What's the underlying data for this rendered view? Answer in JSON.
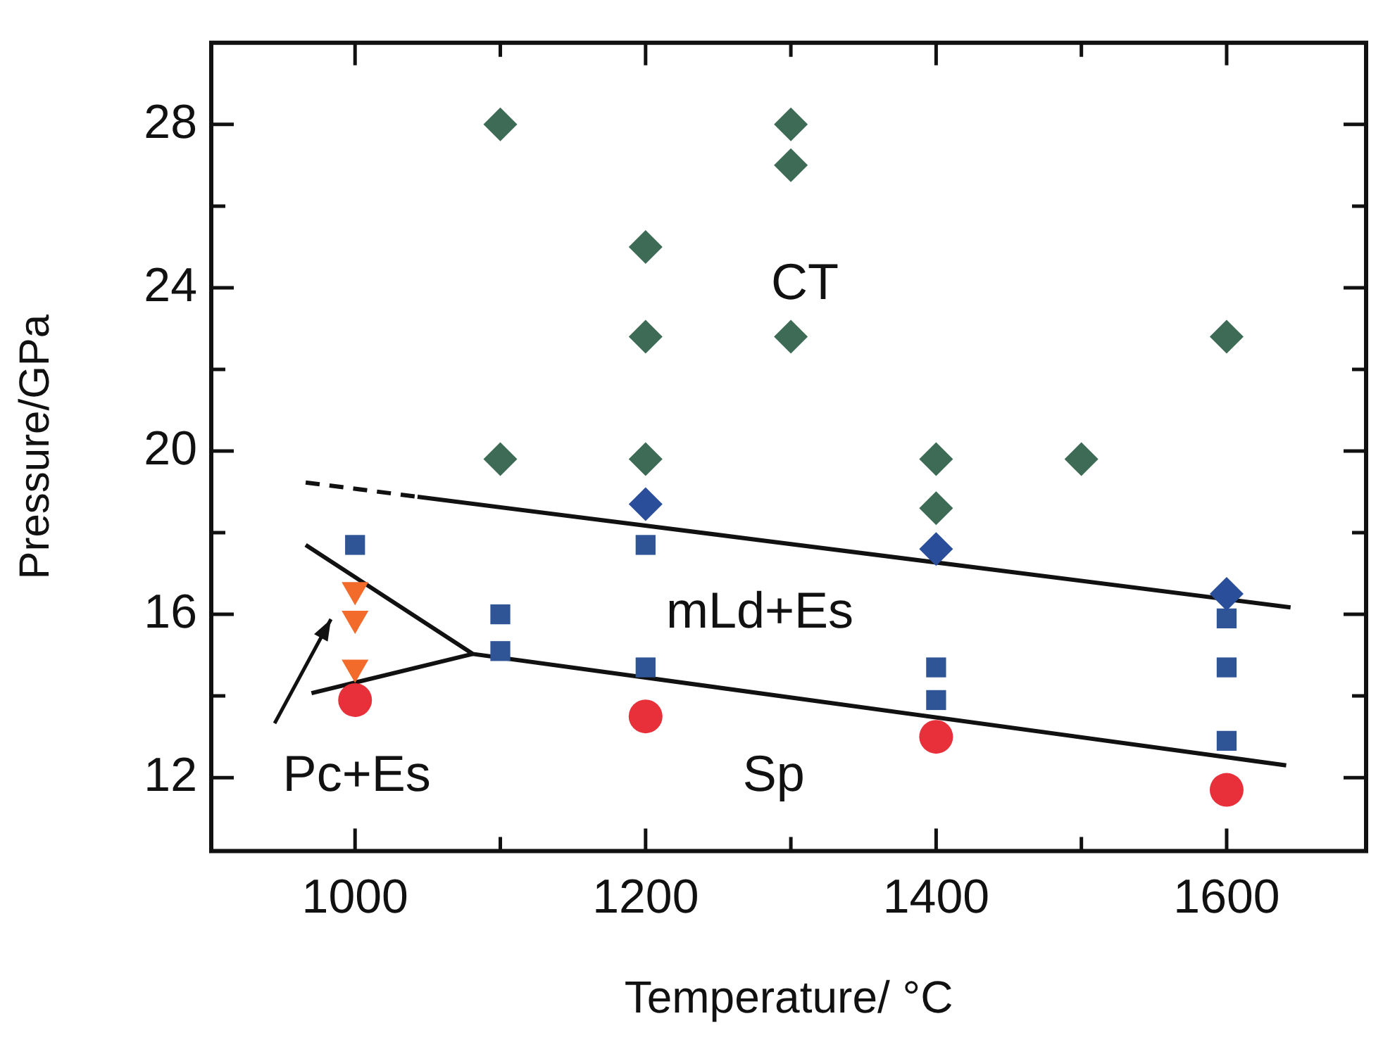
{
  "chart_data": {
    "type": "scatter",
    "xlabel": "Temperature/ °C",
    "ylabel": "Pressure/GPa",
    "xlim": [
      901,
      1696
    ],
    "ylim": [
      10.2,
      30
    ],
    "xticks": [
      1000,
      {
        "value": 1100,
        "label": null
      },
      1200,
      {
        "value": 1300,
        "label": null
      },
      1400,
      {
        "value": 1500,
        "label": null
      },
      1600
    ],
    "yticks": [
      12,
      {
        "value": 14,
        "label": null
      },
      16,
      {
        "value": 18,
        "label": null
      },
      20,
      {
        "value": 22,
        "label": null
      },
      24,
      {
        "value": 26,
        "label": null
      },
      28
    ],
    "grid": false,
    "legend": false,
    "series": [
      {
        "marker": "diamond",
        "color": "#3d6b55",
        "x": [
          1100,
          1300,
          1300,
          1200,
          1200,
          1300,
          1600,
          1100,
          1200,
          1400,
          1500,
          1400
        ],
        "values": [
          28,
          28,
          27,
          25,
          22.8,
          22.8,
          22.8,
          19.8,
          19.8,
          19.8,
          19.8,
          18.6
        ]
      },
      {
        "marker": "diamond",
        "color": "#2a4e9a",
        "x": [
          1200,
          1400,
          1600
        ],
        "values": [
          18.7,
          17.6,
          16.5
        ]
      },
      {
        "marker": "square",
        "color": "#2f5597",
        "x": [
          1000,
          1100,
          1100,
          1200,
          1200,
          1400,
          1400,
          1600,
          1600,
          1600
        ],
        "values": [
          17.7,
          16,
          15.1,
          17.7,
          14.7,
          14.7,
          13.9,
          15.9,
          14.7,
          12.9
        ]
      },
      {
        "marker": "triangle",
        "color": "#f26b2a",
        "x": [
          1000,
          1000,
          1000
        ],
        "values": [
          16.6,
          15.9,
          14.7
        ]
      },
      {
        "marker": "circle",
        "color": "#e8303a",
        "x": [
          1000,
          1200,
          1400,
          1600
        ],
        "values": [
          13.9,
          13.5,
          13,
          11.7
        ]
      },
      {
        "type": "line",
        "line_style": "dashed",
        "marker": "none",
        "color": "#111111",
        "x": [
          966,
          1043
        ],
        "values": [
          19.23,
          18.88
        ]
      },
      {
        "type": "line",
        "line_style": "solid",
        "marker": "none",
        "color": "#111111",
        "x": [
          1043,
          1644
        ],
        "values": [
          18.88,
          16.17
        ]
      },
      {
        "type": "line",
        "line_style": "solid",
        "marker": "none",
        "color": "#111111",
        "x": [
          966,
          1081,
          1641
        ],
        "values": [
          17.7,
          15.03,
          12.3
        ]
      },
      {
        "type": "line",
        "line_style": "solid",
        "marker": "none",
        "color": "#111111",
        "x": [
          970,
          1081
        ],
        "values": [
          14.07,
          15.03
        ]
      }
    ],
    "annotations": [
      "CT",
      "mLd+Es",
      "Sp",
      "Pc+Es"
    ]
  }
}
